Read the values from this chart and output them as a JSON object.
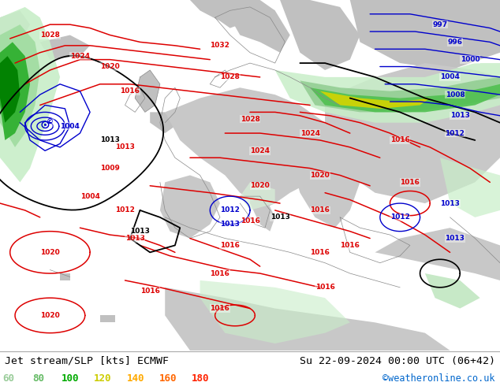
{
  "title_left": "Jet stream/SLP [kts] ECMWF",
  "title_right": "Su 22-09-2024 00:00 UTC (06+42)",
  "credit": "©weatheronline.co.uk",
  "legend_values": [
    60,
    80,
    100,
    120,
    140,
    160,
    180
  ],
  "legend_colors": [
    "#99cc99",
    "#66bb66",
    "#00aa00",
    "#cccc00",
    "#ffaa00",
    "#ff6600",
    "#ff2200"
  ],
  "bg_color": "#ffffff",
  "land_color": "#c8c8c8",
  "sea_color": "#ffffff",
  "jet_colors": [
    {
      "level": 60,
      "color": "#c8eec8"
    },
    {
      "level": 80,
      "color": "#a0dca0"
    },
    {
      "level": 100,
      "color": "#50c050"
    },
    {
      "level": 120,
      "color": "#c8c800"
    },
    {
      "level": 140,
      "color": "#ffa000"
    },
    {
      "level": 160,
      "color": "#ff6000"
    },
    {
      "level": 180,
      "color": "#ff2000"
    }
  ],
  "figsize": [
    6.34,
    4.9
  ],
  "dpi": 100
}
